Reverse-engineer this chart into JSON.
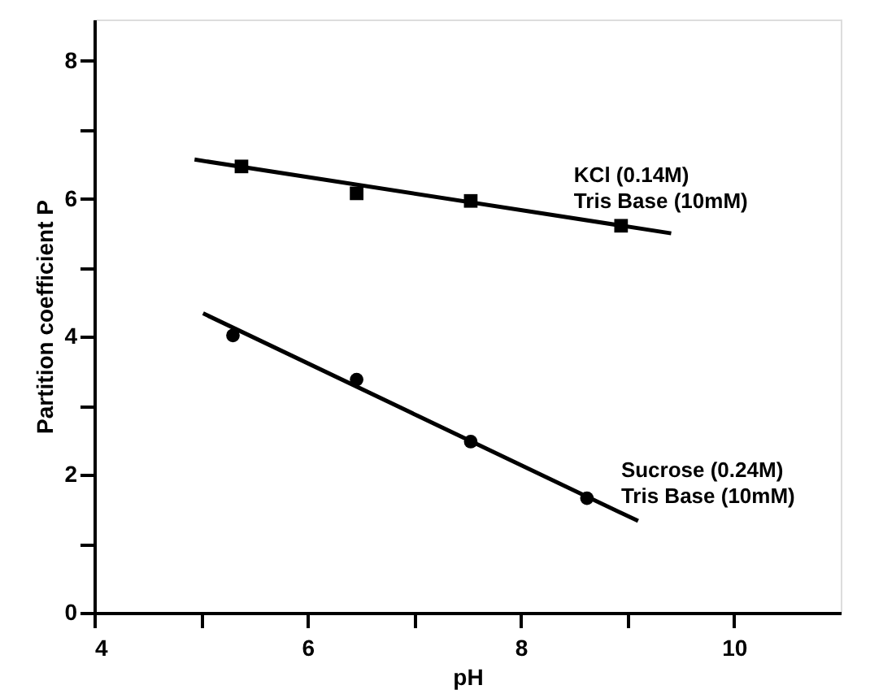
{
  "chart_data": {
    "type": "scatter",
    "xlabel": "pH",
    "ylabel": "Partition coefficient P",
    "xlim": [
      4,
      11
    ],
    "ylim": [
      0,
      8.6
    ],
    "xticks": [
      4,
      {
        "value": 5,
        "label": null
      },
      6,
      {
        "value": 7,
        "label": null
      },
      8,
      {
        "value": 9,
        "label": null
      },
      10
    ],
    "yticks": [
      0,
      {
        "value": 1,
        "label": null
      },
      2,
      {
        "value": 3,
        "label": null
      },
      4,
      {
        "value": 5,
        "label": null
      },
      6,
      {
        "value": 7,
        "label": null
      },
      8
    ],
    "grid": false,
    "series": [
      {
        "marker": "square",
        "color": "#000000",
        "x": [
          5.38,
          6.46,
          7.53,
          8.94
        ],
        "values": [
          6.47,
          6.08,
          5.97,
          5.61
        ]
      },
      {
        "type": "line",
        "marker": "none",
        "line_style": "solid",
        "color": "#000000",
        "x": [
          4.94,
          9.41
        ],
        "values": [
          6.57,
          5.5
        ]
      },
      {
        "marker": "circle",
        "color": "#000000",
        "x": [
          5.3,
          6.46,
          7.53,
          8.62
        ],
        "values": [
          4.02,
          3.38,
          2.48,
          1.66
        ]
      },
      {
        "type": "line",
        "marker": "none",
        "line_style": "solid",
        "color": "#000000",
        "x": [
          5.02,
          9.1
        ],
        "values": [
          4.34,
          1.33
        ]
      }
    ],
    "annotations": [
      "KCl (0.14M)\nTris Base (10mM)",
      "Sucrose (0.24M)\nTris Base (10mM)"
    ]
  }
}
